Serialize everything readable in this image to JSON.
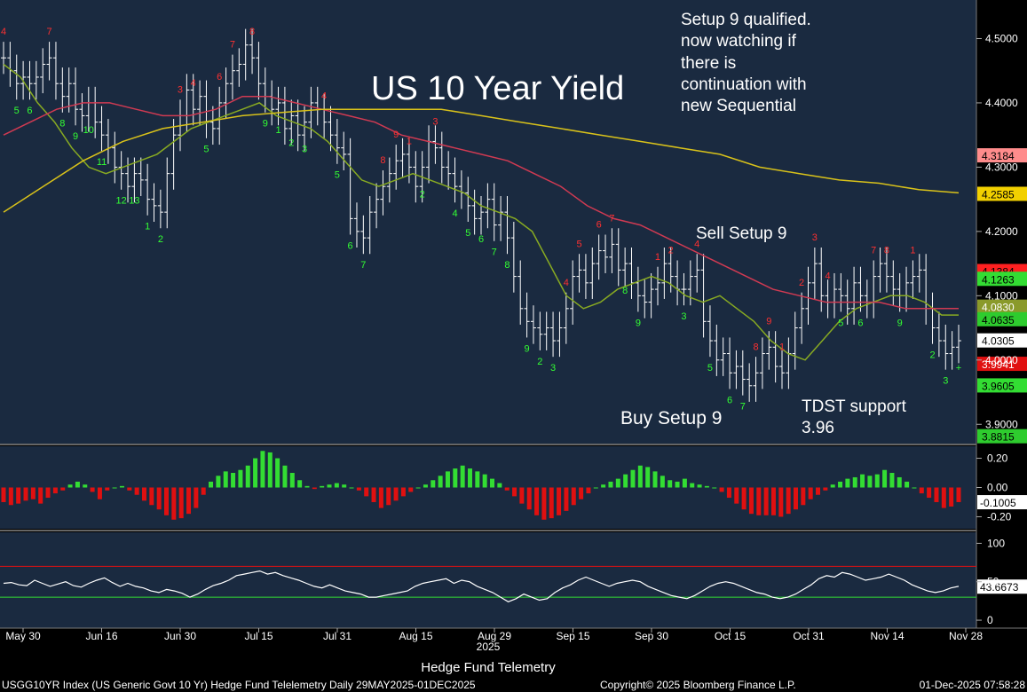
{
  "chart_data": [
    {
      "panel": "price",
      "type": "bar",
      "title": "US 10 Year Yield",
      "yticks": [
        3.9,
        4.0,
        4.1,
        4.2,
        4.3,
        4.4,
        4.5
      ],
      "ytick_labels": [
        "3.9000",
        "4.0000",
        "4.1000",
        "4.2000",
        "4.3000",
        "4.4000",
        "4.5000"
      ],
      "ylim": [
        3.87,
        4.56
      ],
      "price_tags": [
        {
          "value": 4.3184,
          "label": "4.3184",
          "color": "#ff8c8c",
          "text_color": "#000000"
        },
        {
          "value": 4.2585,
          "label": "4.2585",
          "color": "#f2d000",
          "text_color": "#000000"
        },
        {
          "value": 4.1384,
          "label": "4.1384",
          "color": "#ff2020",
          "text_color": "#000000"
        },
        {
          "value": 4.1263,
          "label": "4.1263",
          "color": "#33dd33",
          "text_color": "#000000"
        },
        {
          "value": 4.083,
          "label": "4.0830",
          "color": "#8a9a2a",
          "text_color": "#ffffff"
        },
        {
          "value": 4.0635,
          "label": "4.0635",
          "color": "#2ecc2e",
          "text_color": "#000000"
        },
        {
          "value": 4.0305,
          "label": "4.0305",
          "color": "#ffffff",
          "text_color": "#000000"
        },
        {
          "value": 3.9941,
          "label": "3.9941",
          "color": "#e01010",
          "text_color": "#ffffff"
        },
        {
          "value": 3.9605,
          "label": "3.9605",
          "color": "#33dd33",
          "text_color": "#000000"
        },
        {
          "value": 3.8815,
          "label": "3.8815",
          "color": "#2ecc2e",
          "text_color": "#000000"
        }
      ],
      "annotations": {
        "setup_note": [
          "Setup 9 qualified.",
          "now watching if",
          "there is",
          "continuation with",
          "new Sequential"
        ],
        "sell_setup": "Sell Setup 9",
        "buy_setup": "Buy Setup 9",
        "tdst": [
          "TDST support",
          "3.96"
        ]
      },
      "series": [
        {
          "name": "",
          "color": "#ffffff",
          "kind": "ohlc",
          "values": [
            4.47,
            4.45,
            4.43,
            4.44,
            4.43,
            4.44,
            4.46,
            4.47,
            4.43,
            4.41,
            4.43,
            4.39,
            4.38,
            4.4,
            4.37,
            4.35,
            4.33,
            4.3,
            4.29,
            4.27,
            4.29,
            4.28,
            4.25,
            4.24,
            4.23,
            4.29,
            4.35,
            4.38,
            4.42,
            4.39,
            4.41,
            4.37,
            4.36,
            4.4,
            4.43,
            4.45,
            4.46,
            4.49,
            4.47,
            4.43,
            4.41,
            4.39,
            4.4,
            4.36,
            4.38,
            4.35,
            4.37,
            4.4,
            4.39,
            4.37,
            4.35,
            4.33,
            4.32,
            4.22,
            4.2,
            4.19,
            4.23,
            4.25,
            4.27,
            4.29,
            4.31,
            4.32,
            4.3,
            4.27,
            4.3,
            4.34,
            4.33,
            4.3,
            4.29,
            4.27,
            4.26,
            4.24,
            4.22,
            4.23,
            4.25,
            4.21,
            4.23,
            4.19,
            4.13,
            4.08,
            4.06,
            4.05,
            4.04,
            4.05,
            4.03,
            4.05,
            4.08,
            4.13,
            4.14,
            4.12,
            4.15,
            4.17,
            4.16,
            4.18,
            4.14,
            4.15,
            4.12,
            4.1,
            4.09,
            4.11,
            4.12,
            4.15,
            4.13,
            4.11,
            4.11,
            4.13,
            4.14,
            4.06,
            4.03,
            4.0,
            4.01,
            3.98,
            3.99,
            3.97,
            3.96,
            3.98,
            4.01,
            4.02,
            3.99,
            3.98,
            4.01,
            4.05,
            4.08,
            4.12,
            4.15,
            4.1,
            4.09,
            4.11,
            4.1,
            4.08,
            4.12,
            4.1,
            4.09,
            4.13,
            4.15,
            4.13,
            4.11,
            4.1,
            4.12,
            4.13,
            4.14,
            4.08,
            4.05,
            4.03,
            4.01,
            4.02,
            4.03
          ]
        },
        {
          "name": "",
          "color": "#88aa22",
          "kind": "line",
          "values": [
            4.46,
            4.44,
            4.4,
            4.37,
            4.33,
            4.3,
            4.29,
            4.3,
            4.31,
            4.32,
            4.34,
            4.36,
            4.37,
            4.38,
            4.39,
            4.4,
            4.38,
            4.37,
            4.36,
            4.34,
            4.31,
            4.28,
            4.27,
            4.28,
            4.29,
            4.28,
            4.27,
            4.26,
            4.24,
            4.23,
            4.22,
            4.2,
            4.15,
            4.1,
            4.08,
            4.09,
            4.11,
            4.12,
            4.13,
            4.12,
            4.1,
            4.09,
            4.1,
            4.08,
            4.06,
            4.03,
            4.01,
            4.0,
            4.03,
            4.06,
            4.08,
            4.09,
            4.1,
            4.1,
            4.09,
            4.07,
            4.07
          ]
        },
        {
          "name": "",
          "color": "#d03a52",
          "kind": "line",
          "values": [
            4.35,
            4.37,
            4.39,
            4.4,
            4.4,
            4.39,
            4.38,
            4.38,
            4.39,
            4.41,
            4.41,
            4.4,
            4.39,
            4.38,
            4.37,
            4.35,
            4.34,
            4.33,
            4.32,
            4.31,
            4.29,
            4.27,
            4.24,
            4.22,
            4.21,
            4.19,
            4.17,
            4.15,
            4.13,
            4.11,
            4.1,
            4.09,
            4.09,
            4.09,
            4.08,
            4.08,
            4.08
          ]
        },
        {
          "name": "",
          "color": "#d9c21a",
          "kind": "line",
          "values": [
            4.23,
            4.27,
            4.31,
            4.34,
            4.36,
            4.37,
            4.38,
            4.385,
            4.39,
            4.39,
            4.39,
            4.39,
            4.38,
            4.37,
            4.36,
            4.35,
            4.34,
            4.33,
            4.32,
            4.3,
            4.29,
            4.28,
            4.275,
            4.265,
            4.26
          ]
        }
      ],
      "count_labels": [
        "4",
        "5",
        "6",
        "7",
        "8",
        "9",
        "10",
        "11",
        "12",
        "13",
        "1",
        "2",
        "3",
        "4",
        "5",
        "6",
        "7",
        "8",
        "9",
        "1",
        "2",
        "3",
        "4",
        "5",
        "6",
        "7",
        "8",
        "9",
        "1",
        "2",
        "3",
        "4",
        "5",
        "6",
        "7",
        "8",
        "9",
        "2",
        "3",
        "4",
        "5",
        "6",
        "7",
        "8",
        "9",
        "1",
        "2",
        "3",
        "4",
        "5",
        "6",
        "7",
        "8",
        "9",
        "1",
        "2",
        "3",
        "4",
        "5",
        "6",
        "7",
        "8",
        "9",
        "1",
        "2",
        "3",
        "+"
      ]
    },
    {
      "panel": "oscillator",
      "type": "bar",
      "yticks": [
        0.2,
        0.0,
        -0.2
      ],
      "ytick_labels": [
        "0.20",
        "0.00",
        "-0.20"
      ],
      "ylim": [
        -0.27,
        0.27
      ],
      "last_value": "-0.1005",
      "positive_color": "#33dd33",
      "negative_color": "#e01010",
      "values": [
        -0.1,
        -0.12,
        -0.11,
        -0.09,
        -0.08,
        -0.11,
        -0.07,
        -0.04,
        -0.02,
        0.02,
        0.04,
        0.02,
        -0.03,
        -0.08,
        -0.02,
        0.0,
        0.01,
        -0.02,
        -0.05,
        -0.09,
        -0.12,
        -0.15,
        -0.19,
        -0.22,
        -0.21,
        -0.18,
        -0.14,
        -0.05,
        0.04,
        0.08,
        0.11,
        0.1,
        0.12,
        0.15,
        0.2,
        0.25,
        0.24,
        0.2,
        0.15,
        0.1,
        0.05,
        0.01,
        -0.01,
        0.01,
        0.02,
        0.03,
        0.02,
        0.0,
        -0.02,
        -0.06,
        -0.1,
        -0.14,
        -0.12,
        -0.09,
        -0.06,
        -0.03,
        0.0,
        0.02,
        0.05,
        0.08,
        0.11,
        0.13,
        0.15,
        0.13,
        0.11,
        0.09,
        0.06,
        0.03,
        -0.02,
        -0.06,
        -0.11,
        -0.15,
        -0.19,
        -0.22,
        -0.21,
        -0.19,
        -0.16,
        -0.12,
        -0.08,
        -0.04,
        0.0,
        0.02,
        0.04,
        0.06,
        0.09,
        0.12,
        0.15,
        0.14,
        0.11,
        0.08,
        0.05,
        0.04,
        0.06,
        0.03,
        0.02,
        0.01,
        0.0,
        -0.03,
        -0.07,
        -0.11,
        -0.15,
        -0.18,
        -0.19,
        -0.19,
        -0.19,
        -0.2,
        -0.18,
        -0.15,
        -0.12,
        -0.08,
        -0.05,
        -0.02,
        0.02,
        0.04,
        0.06,
        0.07,
        0.09,
        0.08,
        0.09,
        0.12,
        0.1,
        0.07,
        0.04,
        0.0,
        -0.04,
        -0.07,
        -0.1,
        -0.14,
        -0.13,
        -0.1
      ]
    },
    {
      "panel": "rsi",
      "type": "line",
      "yticks": [
        100,
        50,
        0
      ],
      "ytick_labels": [
        "100",
        "50",
        "0"
      ],
      "ylim": [
        -8,
        112
      ],
      "upper": 70,
      "lower": 30,
      "last_value": "43.6673",
      "values": [
        48,
        49,
        46,
        45,
        52,
        48,
        44,
        47,
        50,
        45,
        43,
        48,
        52,
        55,
        49,
        44,
        48,
        44,
        42,
        38,
        36,
        40,
        38,
        35,
        30,
        34,
        40,
        45,
        48,
        52,
        58,
        60,
        62,
        64,
        60,
        62,
        58,
        55,
        52,
        48,
        44,
        42,
        46,
        42,
        38,
        36,
        34,
        30,
        30,
        32,
        34,
        36,
        38,
        44,
        48,
        50,
        52,
        54,
        48,
        52,
        50,
        44,
        40,
        36,
        30,
        24,
        28,
        34,
        30,
        26,
        28,
        36,
        42,
        46,
        52,
        56,
        52,
        48,
        44,
        48,
        50,
        52,
        50,
        44,
        40,
        36,
        32,
        30,
        28,
        32,
        38,
        44,
        48,
        50,
        48,
        44,
        40,
        36,
        34,
        30,
        28,
        30,
        34,
        40,
        46,
        54,
        58,
        56,
        62,
        60,
        56,
        52,
        54,
        56,
        60,
        56,
        52,
        46,
        42,
        38,
        36,
        38,
        42,
        44
      ]
    }
  ],
  "x_axis": {
    "ticks": [
      "May 30",
      "Jun 16",
      "Jun 30",
      "Jul 15",
      "Jul 31",
      "Aug 15",
      "Aug 29",
      "Sep 15",
      "Sep 30",
      "Oct 15",
      "Oct 31",
      "Nov 14",
      "Nov 28"
    ],
    "year_label": "2025",
    "footer_title": "Hedge Fund Telemetry"
  },
  "footer": {
    "left": "USGG10YR Index (US Generic Govt 10 Yr) Hedge Fund Telelemetry Daily 29MAY2025-01DEC2025",
    "center": "Copyright© 2025 Bloomberg Finance L.P.",
    "right": "01-Dec-2025 07:58:28"
  }
}
